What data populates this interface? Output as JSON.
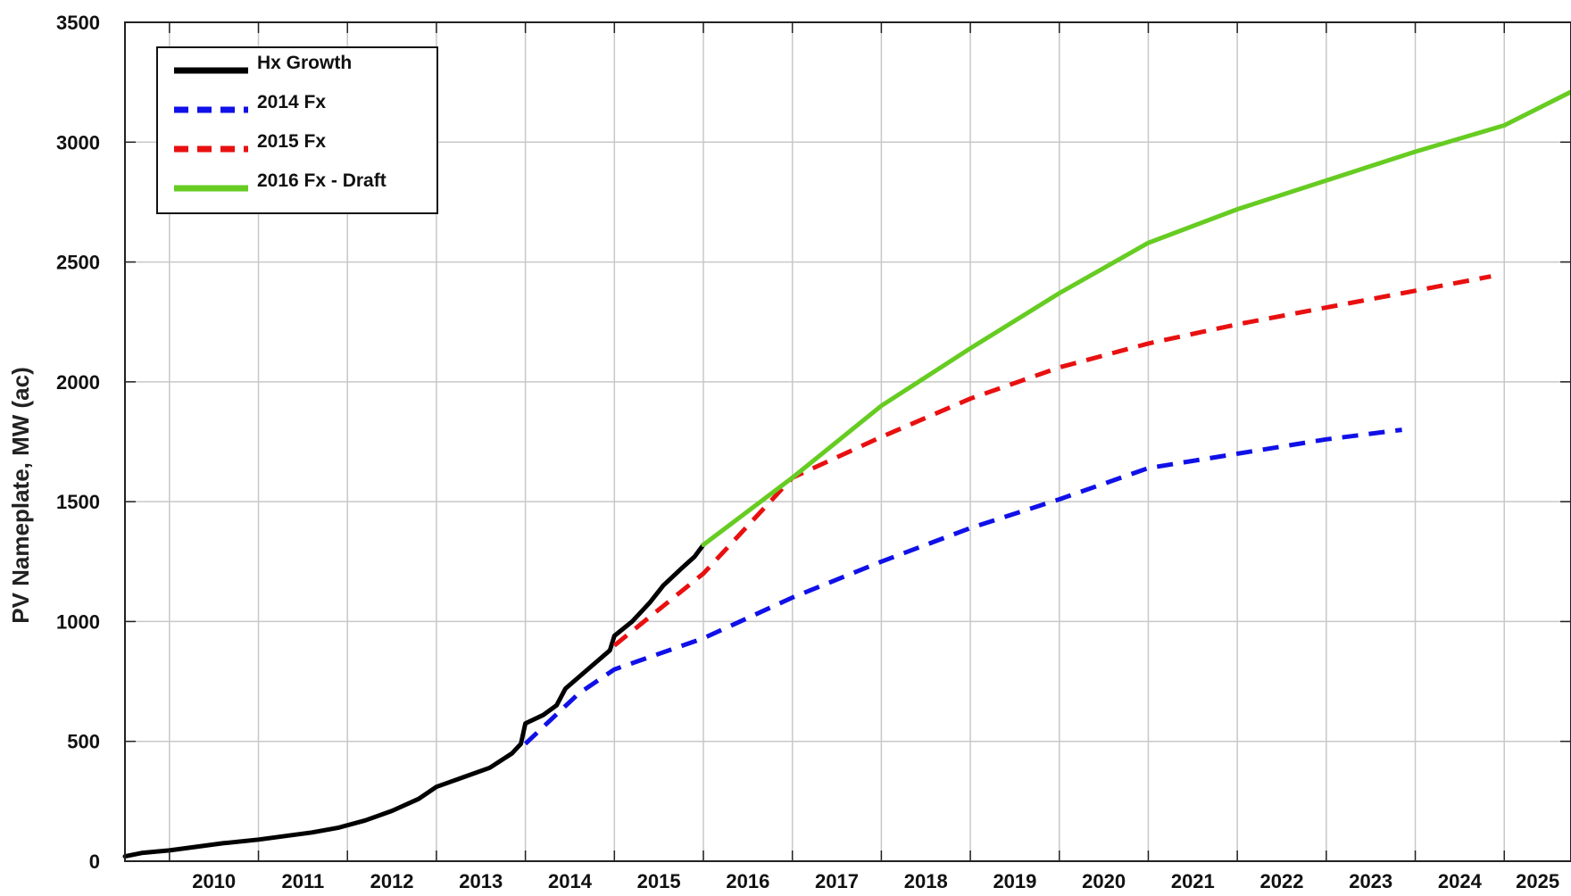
{
  "chart_data": {
    "type": "line",
    "title": "",
    "xlabel": "",
    "ylabel": "PV Nameplate, MW (ac)",
    "ylim": [
      0,
      3500
    ],
    "xlim": [
      2009.5,
      2025.75
    ],
    "y_ticks": [
      "0",
      "500",
      "1000",
      "1500",
      "2000",
      "2500",
      "3000",
      "3500"
    ],
    "x_tick_labels": [
      "2010",
      "2011",
      "2012",
      "2013",
      "2014",
      "2015",
      "2016",
      "2017",
      "2018",
      "2019",
      "2020",
      "2021",
      "2022",
      "2023",
      "2024",
      "2025"
    ],
    "grid": true,
    "legend_position": "top-left",
    "series": [
      {
        "name": "Hx Growth",
        "color": "#000000",
        "style": "solid",
        "points": [
          [
            2009.5,
            20
          ],
          [
            2009.7,
            35
          ],
          [
            2010.0,
            45
          ],
          [
            2010.3,
            60
          ],
          [
            2010.6,
            75
          ],
          [
            2011.0,
            90
          ],
          [
            2011.3,
            105
          ],
          [
            2011.6,
            120
          ],
          [
            2011.9,
            140
          ],
          [
            2012.2,
            170
          ],
          [
            2012.5,
            210
          ],
          [
            2012.8,
            260
          ],
          [
            2013.0,
            310
          ],
          [
            2013.3,
            350
          ],
          [
            2013.6,
            390
          ],
          [
            2013.85,
            450
          ],
          [
            2013.95,
            490
          ],
          [
            2014.0,
            575
          ],
          [
            2014.2,
            610
          ],
          [
            2014.35,
            650
          ],
          [
            2014.45,
            720
          ],
          [
            2014.7,
            800
          ],
          [
            2014.95,
            880
          ],
          [
            2015.0,
            940
          ],
          [
            2015.2,
            1000
          ],
          [
            2015.4,
            1080
          ],
          [
            2015.55,
            1150
          ],
          [
            2015.75,
            1220
          ],
          [
            2015.9,
            1270
          ],
          [
            2016.0,
            1320
          ]
        ]
      },
      {
        "name": "2014 Fx",
        "color": "#1010e8",
        "style": "dashed",
        "points": [
          [
            2014.0,
            490
          ],
          [
            2014.6,
            700
          ],
          [
            2015.0,
            800
          ],
          [
            2016.0,
            930
          ],
          [
            2017.0,
            1100
          ],
          [
            2018.0,
            1250
          ],
          [
            2019.0,
            1390
          ],
          [
            2020.0,
            1510
          ],
          [
            2021.0,
            1640
          ],
          [
            2022.0,
            1700
          ],
          [
            2023.0,
            1760
          ],
          [
            2023.85,
            1800
          ]
        ]
      },
      {
        "name": "2015 Fx",
        "color": "#e81010",
        "style": "dashed",
        "points": [
          [
            2015.0,
            900
          ],
          [
            2016.0,
            1200
          ],
          [
            2017.0,
            1600
          ],
          [
            2018.0,
            1770
          ],
          [
            2019.0,
            1930
          ],
          [
            2020.0,
            2060
          ],
          [
            2021.0,
            2160
          ],
          [
            2022.0,
            2240
          ],
          [
            2023.0,
            2310
          ],
          [
            2024.0,
            2380
          ],
          [
            2024.85,
            2440
          ]
        ]
      },
      {
        "name": "2016 Fx - Draft",
        "color": "#66cc22",
        "style": "solid",
        "points": [
          [
            2016.0,
            1320
          ],
          [
            2017.0,
            1600
          ],
          [
            2018.0,
            1900
          ],
          [
            2019.0,
            2140
          ],
          [
            2020.0,
            2370
          ],
          [
            2021.0,
            2580
          ],
          [
            2022.0,
            2720
          ],
          [
            2023.0,
            2840
          ],
          [
            2024.0,
            2960
          ],
          [
            2025.0,
            3070
          ],
          [
            2025.75,
            3210
          ]
        ]
      }
    ]
  }
}
